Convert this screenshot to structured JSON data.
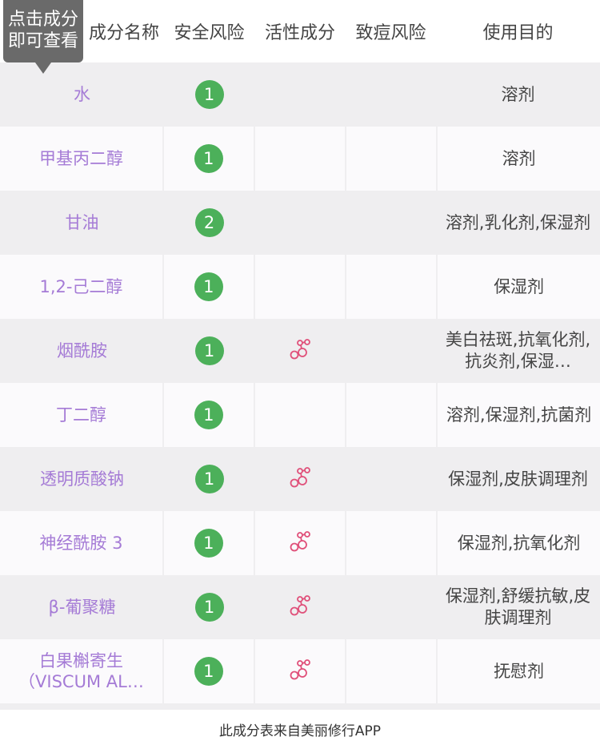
{
  "tooltip": {
    "text_line1": "点击成分",
    "text_line2": "即可查看"
  },
  "header": {
    "name": "成分名称",
    "safety": "安全风险",
    "active": "活性成分",
    "acne": "致痘风险",
    "purpose": "使用目的"
  },
  "rows": [
    {
      "name": "水",
      "safety": "1",
      "active": false,
      "purpose": "溶剂"
    },
    {
      "name": "甲基丙二醇",
      "safety": "1",
      "active": false,
      "purpose": "溶剂"
    },
    {
      "name": "甘油",
      "safety": "2",
      "active": false,
      "purpose": "溶剂,乳化剂,保湿剂"
    },
    {
      "name": "1,2-己二醇",
      "safety": "1",
      "active": false,
      "purpose": "保湿剂"
    },
    {
      "name": "烟酰胺",
      "safety": "1",
      "active": true,
      "purpose": "美白祛斑,抗氧化剂,抗炎剂,保湿…"
    },
    {
      "name": "丁二醇",
      "safety": "1",
      "active": false,
      "purpose": "溶剂,保湿剂,抗菌剂"
    },
    {
      "name": "透明质酸钠",
      "safety": "1",
      "active": true,
      "purpose": "保湿剂,皮肤调理剂"
    },
    {
      "name": "神经酰胺 3",
      "safety": "1",
      "active": true,
      "purpose": "保湿剂,抗氧化剂"
    },
    {
      "name": "β-葡聚糖",
      "safety": "1",
      "active": true,
      "purpose": "保湿剂,舒缓抗敏,皮肤调理剂"
    },
    {
      "name": "白果槲寄生（VISCUM AL…",
      "safety": "1",
      "active": true,
      "purpose": "抚慰剂"
    }
  ],
  "footer": {
    "text": "此成分表来自美丽修行APP"
  },
  "colors": {
    "name": "#a57bd6",
    "badge": "#4cb05a",
    "active_icon": "#e0507a"
  },
  "icons": {
    "active": "molecule-icon"
  }
}
